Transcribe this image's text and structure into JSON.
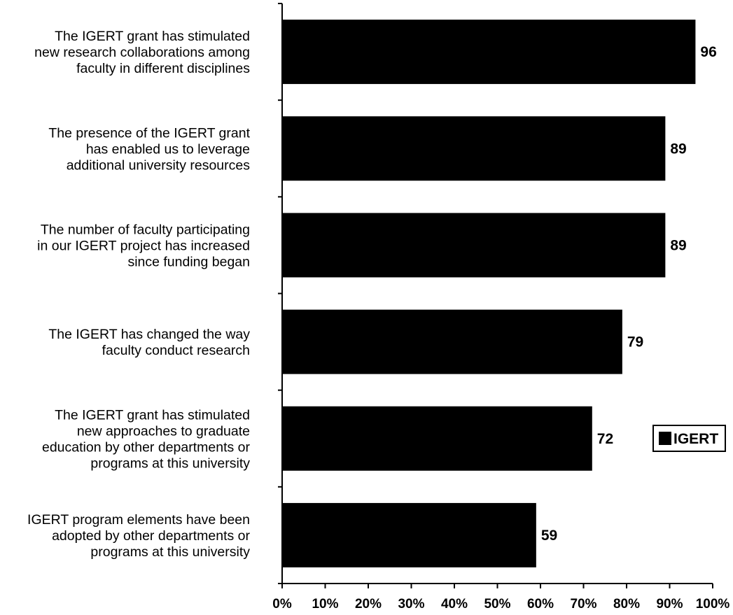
{
  "chart_data": {
    "type": "bar",
    "orientation": "horizontal",
    "categories": [
      "The IGERT grant has stimulated new research collaborations among faculty in different disciplines",
      "The presence of the IGERT grant has enabled us to leverage additional university resources",
      "The number of faculty participating in our IGERT project has increased since funding began",
      "The IGERT has changed the way faculty conduct research",
      "The IGERT grant has stimulated new approaches to graduate education by other departments or programs at this university",
      "IGERT program elements have been adopted by other departments or programs at this university"
    ],
    "category_lines": [
      [
        "The IGERT grant has stimulated",
        "new research collaborations among",
        "faculty in different disciplines"
      ],
      [
        "The presence of the IGERT grant",
        "has enabled us to leverage",
        "additional university resources"
      ],
      [
        "The number of faculty participating",
        "in our IGERT project has increased",
        "since funding began"
      ],
      [
        "The IGERT has changed the way",
        "faculty conduct research"
      ],
      [
        "The IGERT grant has stimulated",
        "new approaches to graduate",
        "education by other departments or",
        "programs at this university"
      ],
      [
        "IGERT program elements have been",
        "adopted by other departments or",
        "programs at this university"
      ]
    ],
    "series": [
      {
        "name": "IGERT",
        "values": [
          96,
          89,
          89,
          79,
          72,
          59
        ],
        "color": "#000000"
      }
    ],
    "data_labels": [
      "96",
      "89",
      "89",
      "79",
      "72",
      "59"
    ],
    "xlim": [
      0,
      100
    ],
    "x_ticks": [
      "0%",
      "10%",
      "20%",
      "30%",
      "40%",
      "50%",
      "60%",
      "70%",
      "80%",
      "90%",
      "100%"
    ],
    "grid": false,
    "legend": {
      "position": "right",
      "entries": [
        "IGERT"
      ]
    },
    "title": "",
    "xlabel": "",
    "ylabel": ""
  }
}
